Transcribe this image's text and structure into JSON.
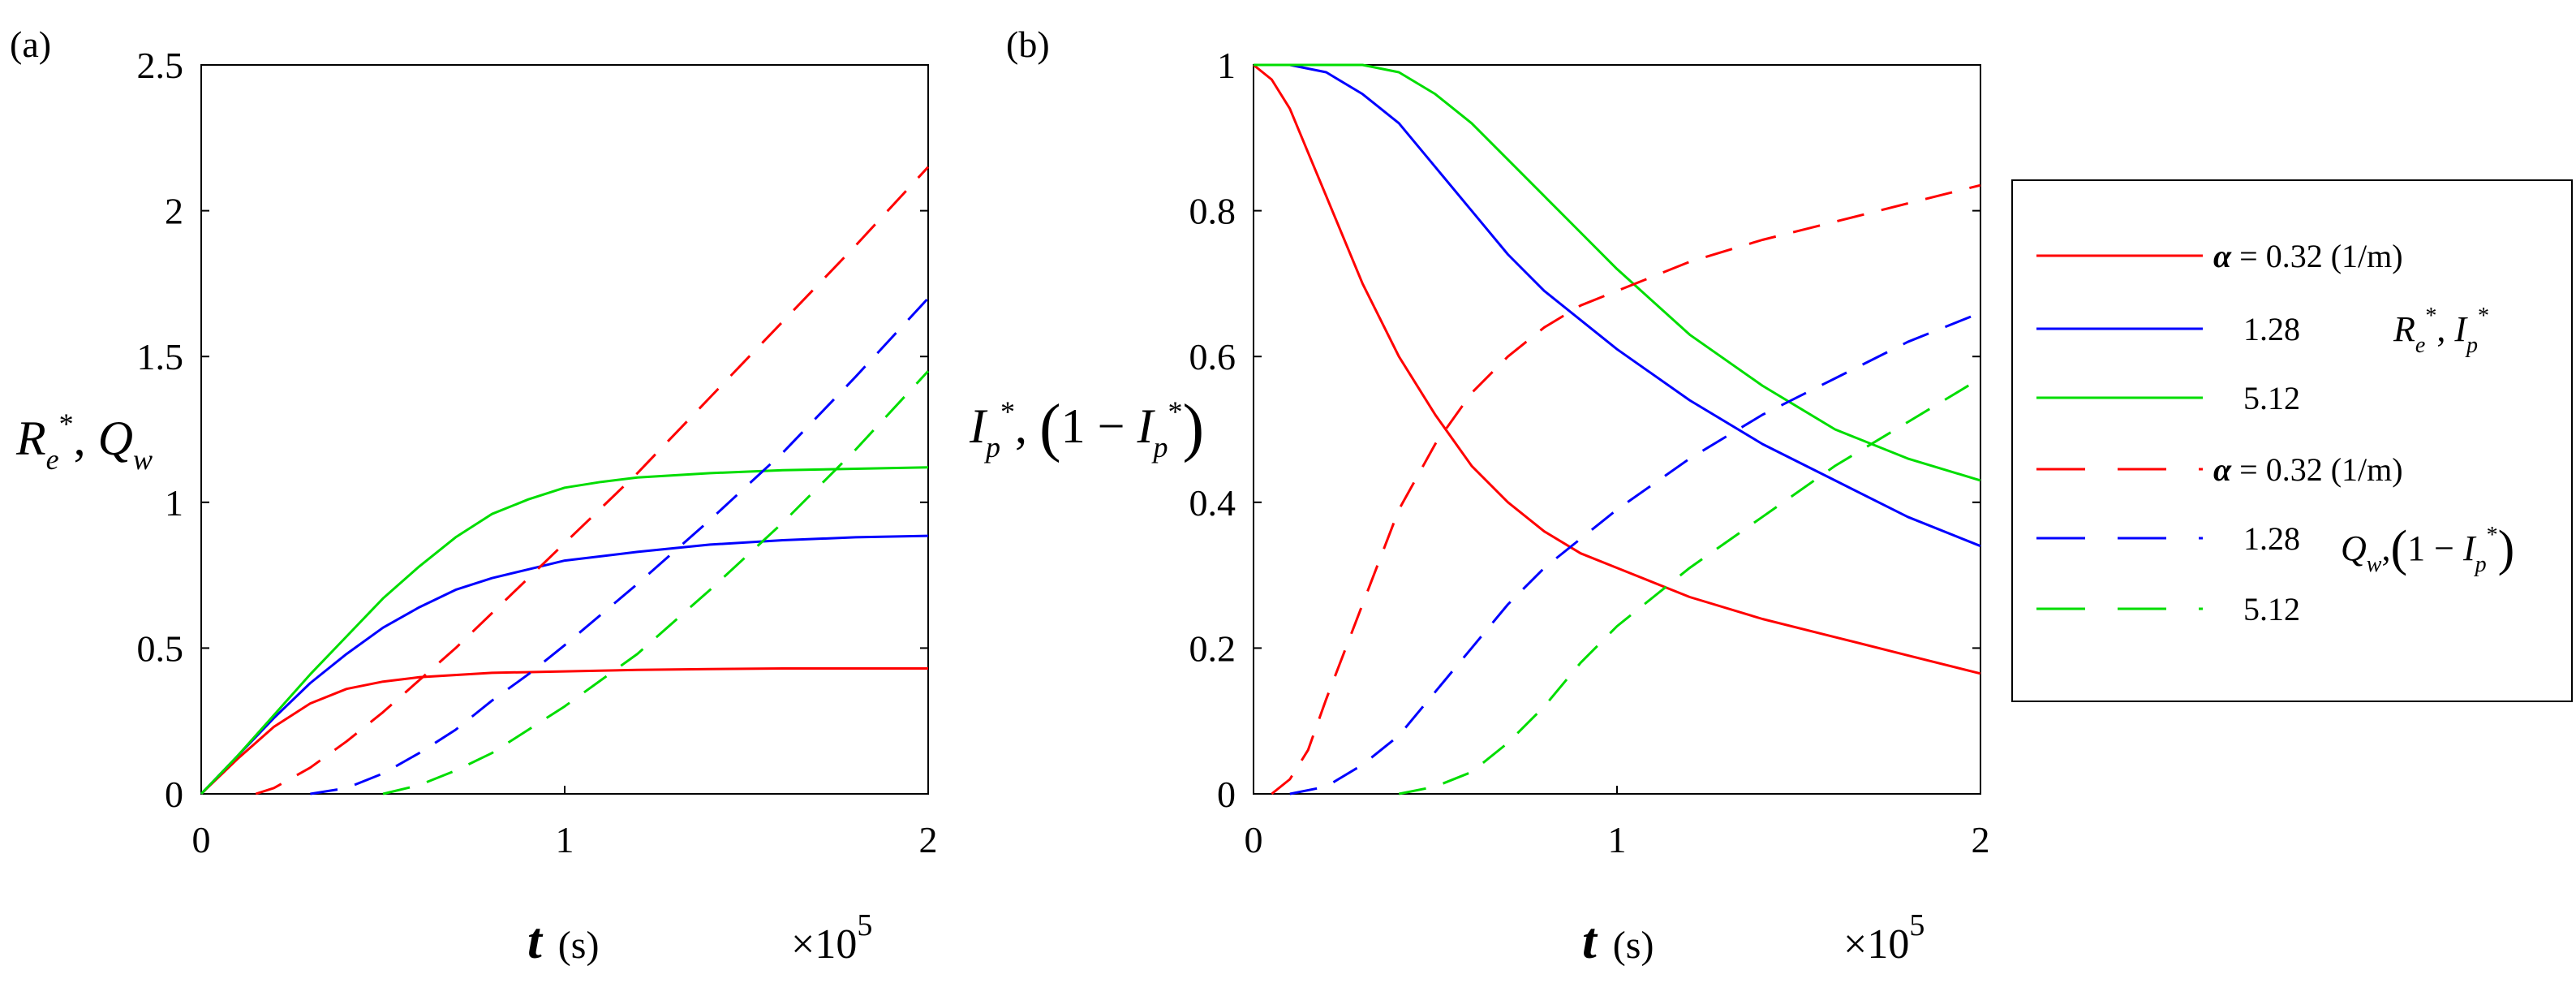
{
  "chart_data": [
    {
      "panel_label": "(a)",
      "type": "line",
      "ylabel": "R_e*, Q_w",
      "xlabel": "t (s)",
      "x_multiplier": "×10^5",
      "xlim": [
        0,
        2
      ],
      "ylim": [
        0,
        2.5
      ],
      "xticks": [
        "0",
        "1",
        "2"
      ],
      "yticks": [
        "0",
        "0.5",
        "1",
        "1.5",
        "2",
        "2.5"
      ],
      "grid": false,
      "series": [
        {
          "group": "R_e*",
          "alpha": "0.32",
          "color": "#ff0000",
          "style": "solid",
          "x": [
            0,
            0.1,
            0.2,
            0.3,
            0.4,
            0.5,
            0.6,
            0.8,
            1.0,
            1.2,
            1.4,
            1.6,
            1.8,
            2.0
          ],
          "y": [
            0,
            0.12,
            0.23,
            0.31,
            0.36,
            0.385,
            0.4,
            0.415,
            0.42,
            0.425,
            0.428,
            0.43,
            0.43,
            0.43
          ]
        },
        {
          "group": "R_e*",
          "alpha": "1.28",
          "color": "#0000ff",
          "style": "solid",
          "x": [
            0,
            0.1,
            0.2,
            0.3,
            0.4,
            0.5,
            0.6,
            0.7,
            0.8,
            0.9,
            1.0,
            1.2,
            1.4,
            1.6,
            1.8,
            2.0
          ],
          "y": [
            0,
            0.13,
            0.26,
            0.38,
            0.48,
            0.57,
            0.64,
            0.7,
            0.74,
            0.77,
            0.8,
            0.83,
            0.855,
            0.87,
            0.88,
            0.885
          ]
        },
        {
          "group": "R_e*",
          "alpha": "5.12",
          "color": "#00dd00",
          "style": "solid",
          "x": [
            0,
            0.1,
            0.2,
            0.3,
            0.4,
            0.5,
            0.6,
            0.7,
            0.8,
            0.9,
            1.0,
            1.1,
            1.2,
            1.4,
            1.6,
            1.8,
            2.0
          ],
          "y": [
            0,
            0.13,
            0.27,
            0.41,
            0.54,
            0.67,
            0.78,
            0.88,
            0.96,
            1.01,
            1.05,
            1.07,
            1.085,
            1.1,
            1.11,
            1.115,
            1.12
          ]
        },
        {
          "group": "Q_w",
          "alpha": "0.32",
          "color": "#ff0000",
          "style": "dashed",
          "x": [
            0.15,
            0.2,
            0.3,
            0.4,
            0.5,
            0.6,
            0.7,
            0.8,
            0.9,
            1.0,
            1.2,
            1.4,
            1.6,
            1.8,
            2.0
          ],
          "y": [
            0,
            0.02,
            0.09,
            0.18,
            0.28,
            0.39,
            0.5,
            0.62,
            0.74,
            0.86,
            1.1,
            1.36,
            1.62,
            1.88,
            2.15
          ]
        },
        {
          "group": "Q_w",
          "alpha": "1.28",
          "color": "#0000ff",
          "style": "dashed",
          "x": [
            0.3,
            0.4,
            0.5,
            0.6,
            0.7,
            0.8,
            0.9,
            1.0,
            1.2,
            1.4,
            1.6,
            1.8,
            2.0
          ],
          "y": [
            0,
            0.02,
            0.07,
            0.14,
            0.22,
            0.32,
            0.41,
            0.51,
            0.72,
            0.94,
            1.17,
            1.43,
            1.7
          ]
        },
        {
          "group": "Q_w",
          "alpha": "5.12",
          "color": "#00dd00",
          "style": "dashed",
          "x": [
            0.5,
            0.6,
            0.7,
            0.8,
            0.9,
            1.0,
            1.1,
            1.2,
            1.4,
            1.6,
            1.8,
            2.0
          ],
          "y": [
            0,
            0.03,
            0.08,
            0.14,
            0.22,
            0.3,
            0.39,
            0.48,
            0.7,
            0.93,
            1.18,
            1.45
          ]
        }
      ]
    },
    {
      "panel_label": "(b)",
      "type": "line",
      "ylabel": "I_p*, (1 − I_p*)",
      "xlabel": "t (s)",
      "x_multiplier": "×10^5",
      "xlim": [
        0,
        2
      ],
      "ylim": [
        0,
        1
      ],
      "xticks": [
        "0",
        "1",
        "2"
      ],
      "yticks": [
        "0",
        "0.2",
        "0.4",
        "0.6",
        "0.8",
        "1"
      ],
      "grid": false,
      "series": [
        {
          "group": "I_p*",
          "alpha": "0.32",
          "color": "#ff0000",
          "style": "solid",
          "x": [
            0,
            0.05,
            0.1,
            0.15,
            0.2,
            0.3,
            0.4,
            0.5,
            0.6,
            0.7,
            0.8,
            0.9,
            1.0,
            1.2,
            1.4,
            1.6,
            1.8,
            2.0
          ],
          "y": [
            1,
            0.98,
            0.94,
            0.88,
            0.82,
            0.7,
            0.6,
            0.52,
            0.45,
            0.4,
            0.36,
            0.33,
            0.31,
            0.27,
            0.24,
            0.215,
            0.19,
            0.165
          ]
        },
        {
          "group": "I_p*",
          "alpha": "1.28",
          "color": "#0000ff",
          "style": "solid",
          "x": [
            0,
            0.1,
            0.2,
            0.3,
            0.4,
            0.5,
            0.6,
            0.7,
            0.8,
            0.9,
            1.0,
            1.2,
            1.4,
            1.6,
            1.8,
            2.0
          ],
          "y": [
            1,
            1,
            0.99,
            0.96,
            0.92,
            0.86,
            0.8,
            0.74,
            0.69,
            0.65,
            0.61,
            0.54,
            0.48,
            0.43,
            0.38,
            0.34
          ]
        },
        {
          "group": "I_p*",
          "alpha": "5.12",
          "color": "#00dd00",
          "style": "solid",
          "x": [
            0,
            0.2,
            0.3,
            0.4,
            0.5,
            0.6,
            0.7,
            0.8,
            0.9,
            1.0,
            1.2,
            1.4,
            1.6,
            1.8,
            2.0
          ],
          "y": [
            1,
            1,
            1,
            0.99,
            0.96,
            0.92,
            0.87,
            0.82,
            0.77,
            0.72,
            0.63,
            0.56,
            0.5,
            0.46,
            0.43
          ]
        },
        {
          "group": "1 − I_p*",
          "alpha": "0.32",
          "color": "#ff0000",
          "style": "dashed",
          "x": [
            0.05,
            0.1,
            0.15,
            0.2,
            0.3,
            0.4,
            0.5,
            0.6,
            0.7,
            0.8,
            0.9,
            1.0,
            1.2,
            1.4,
            1.6,
            1.8,
            2.0
          ],
          "y": [
            0,
            0.02,
            0.06,
            0.13,
            0.26,
            0.39,
            0.48,
            0.55,
            0.6,
            0.64,
            0.67,
            0.69,
            0.73,
            0.76,
            0.785,
            0.81,
            0.835
          ]
        },
        {
          "group": "1 − I_p*",
          "alpha": "1.28",
          "color": "#0000ff",
          "style": "dashed",
          "x": [
            0.1,
            0.2,
            0.3,
            0.4,
            0.5,
            0.6,
            0.7,
            0.8,
            0.9,
            1.0,
            1.2,
            1.4,
            1.6,
            1.8,
            2.0
          ],
          "y": [
            0,
            0.01,
            0.04,
            0.08,
            0.14,
            0.2,
            0.26,
            0.31,
            0.35,
            0.39,
            0.46,
            0.52,
            0.57,
            0.62,
            0.66
          ]
        },
        {
          "group": "1 − I_p*",
          "alpha": "5.12",
          "color": "#00dd00",
          "style": "dashed",
          "x": [
            0.4,
            0.5,
            0.6,
            0.7,
            0.8,
            0.9,
            1.0,
            1.1,
            1.2,
            1.4,
            1.6,
            1.8,
            2.0
          ],
          "y": [
            0,
            0.01,
            0.03,
            0.07,
            0.12,
            0.18,
            0.23,
            0.27,
            0.31,
            0.38,
            0.45,
            0.51,
            0.57
          ]
        }
      ]
    }
  ],
  "legend": {
    "placement": "right",
    "rows": [
      {
        "color": "#ff0000",
        "style": "solid",
        "symbol": "α",
        "text": "= 0.32 (1/m)"
      },
      {
        "color": "#0000ff",
        "style": "solid",
        "text": "1.28"
      },
      {
        "color": "#00dd00",
        "style": "solid",
        "text": "5.12"
      },
      {
        "color": "#ff0000",
        "style": "dashed",
        "symbol": "α",
        "text": "= 0.32 (1/m)"
      },
      {
        "color": "#0000ff",
        "style": "dashed",
        "text": "1.28"
      },
      {
        "color": "#00dd00",
        "style": "dashed",
        "text": "5.12"
      }
    ],
    "group_labels": [
      "R_e*, I_p*",
      "Q_w, (1 − I_p*)"
    ]
  }
}
